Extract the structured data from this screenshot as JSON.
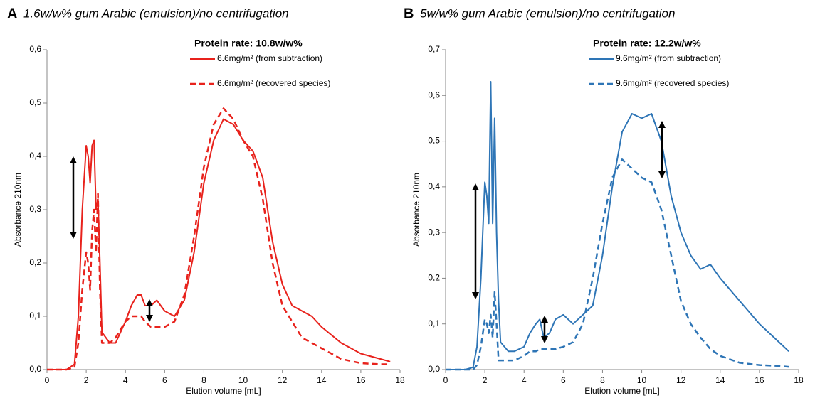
{
  "chart_data": [
    {
      "type": "line",
      "panel": "A",
      "title": "1.6w/w% gum Arabic (emulsion)/no centrifugation",
      "x_label": "Elution volume [mL]",
      "y_label": "Absorbance 210nm",
      "legend_title": "Protein rate: 10.8w/w%",
      "xlim": [
        0,
        18
      ],
      "xticks": [
        0,
        2,
        4,
        6,
        8,
        10,
        12,
        14,
        16,
        18
      ],
      "ylim": [
        0,
        0.6
      ],
      "yticks": [
        {
          "value": 0,
          "label": "0,0"
        },
        {
          "value": 0.1,
          "label": "0,1"
        },
        {
          "value": 0.2,
          "label": "0,2"
        },
        {
          "value": 0.3,
          "label": "0,3"
        },
        {
          "value": 0.4,
          "label": "0,4"
        },
        {
          "value": 0.5,
          "label": "0,5"
        },
        {
          "value": 0.6,
          "label": "0,6"
        }
      ],
      "x": [
        0,
        1,
        1.4,
        1.6,
        1.8,
        2.0,
        2.1,
        2.2,
        2.3,
        2.4,
        2.5,
        2.6,
        2.7,
        2.8,
        3.0,
        3.2,
        3.5,
        4.0,
        4.3,
        4.6,
        4.8,
        5.0,
        5.3,
        5.6,
        6.0,
        6.5,
        7.0,
        7.5,
        8.0,
        8.5,
        9.0,
        9.5,
        10.0,
        10.5,
        11.0,
        11.5,
        12.0,
        12.5,
        13.0,
        13.5,
        14.0,
        15.0,
        16.0,
        17.0,
        17.5
      ],
      "series": [
        {
          "name": "6.6mg/m² (from subtraction)",
          "color": "#e8221c",
          "style": "solid",
          "values": [
            0,
            0,
            0.01,
            0.1,
            0.3,
            0.42,
            0.4,
            0.35,
            0.42,
            0.43,
            0.3,
            0.32,
            0.2,
            0.07,
            0.06,
            0.05,
            0.05,
            0.09,
            0.12,
            0.14,
            0.14,
            0.12,
            0.12,
            0.13,
            0.11,
            0.1,
            0.13,
            0.22,
            0.35,
            0.43,
            0.47,
            0.46,
            0.43,
            0.41,
            0.36,
            0.24,
            0.16,
            0.12,
            0.11,
            0.1,
            0.08,
            0.05,
            0.03,
            0.02,
            0.015
          ]
        },
        {
          "name": "6.6mg/m² (recovered species)",
          "color": "#e8221c",
          "style": "dashed",
          "values": [
            0,
            0,
            0.005,
            0.05,
            0.15,
            0.22,
            0.2,
            0.15,
            0.26,
            0.3,
            0.22,
            0.33,
            0.15,
            0.05,
            0.05,
            0.05,
            0.06,
            0.09,
            0.1,
            0.1,
            0.1,
            0.09,
            0.08,
            0.08,
            0.08,
            0.09,
            0.14,
            0.25,
            0.38,
            0.46,
            0.49,
            0.47,
            0.43,
            0.4,
            0.32,
            0.2,
            0.12,
            0.09,
            0.06,
            0.05,
            0.04,
            0.02,
            0.012,
            0.01,
            0.01
          ]
        }
      ]
    },
    {
      "type": "line",
      "panel": "B",
      "title": "5w/w% gum Arabic (emulsion)/no centrifugation",
      "x_label": "Elution volume [mL]",
      "y_label": "Absorbance 210nm",
      "legend_title": "Protein rate: 12.2w/w%",
      "xlim": [
        0,
        18
      ],
      "xticks": [
        0,
        2,
        4,
        6,
        8,
        10,
        12,
        14,
        16,
        18
      ],
      "ylim": [
        0,
        0.7
      ],
      "yticks": [
        {
          "value": 0,
          "label": "0,0"
        },
        {
          "value": 0.1,
          "label": "0,1"
        },
        {
          "value": 0.2,
          "label": "0,2"
        },
        {
          "value": 0.3,
          "label": "0,3"
        },
        {
          "value": 0.4,
          "label": "0,4"
        },
        {
          "value": 0.5,
          "label": "0,5"
        },
        {
          "value": 0.6,
          "label": "0,6"
        },
        {
          "value": 0.7,
          "label": "0,7"
        }
      ],
      "x": [
        0,
        1,
        1.4,
        1.6,
        1.8,
        2.0,
        2.1,
        2.2,
        2.3,
        2.4,
        2.5,
        2.6,
        2.7,
        2.8,
        3.0,
        3.2,
        3.5,
        4.0,
        4.3,
        4.6,
        4.8,
        5.0,
        5.3,
        5.6,
        6.0,
        6.5,
        7.0,
        7.5,
        8.0,
        8.5,
        9.0,
        9.5,
        10.0,
        10.5,
        11.0,
        11.5,
        12.0,
        12.5,
        13.0,
        13.5,
        14.0,
        15.0,
        16.0,
        17.0,
        17.5
      ],
      "series": [
        {
          "name": "9.6mg/m² (from subtraction)",
          "color": "#2e75b6",
          "style": "solid",
          "values": [
            0,
            0,
            0.005,
            0.05,
            0.2,
            0.41,
            0.38,
            0.32,
            0.63,
            0.32,
            0.55,
            0.3,
            0.15,
            0.06,
            0.05,
            0.04,
            0.04,
            0.05,
            0.08,
            0.1,
            0.11,
            0.07,
            0.08,
            0.11,
            0.12,
            0.1,
            0.12,
            0.14,
            0.25,
            0.4,
            0.52,
            0.56,
            0.55,
            0.56,
            0.5,
            0.38,
            0.3,
            0.25,
            0.22,
            0.23,
            0.2,
            0.15,
            0.1,
            0.06,
            0.04
          ]
        },
        {
          "name": "9.6mg/m² (recovered species)",
          "color": "#2e75b6",
          "style": "dashed",
          "values": [
            0,
            0,
            0,
            0.01,
            0.05,
            0.11,
            0.1,
            0.08,
            0.12,
            0.07,
            0.17,
            0.1,
            0.02,
            0.02,
            0.02,
            0.02,
            0.02,
            0.03,
            0.04,
            0.04,
            0.045,
            0.045,
            0.045,
            0.045,
            0.05,
            0.06,
            0.1,
            0.2,
            0.32,
            0.42,
            0.46,
            0.44,
            0.42,
            0.41,
            0.35,
            0.25,
            0.15,
            0.1,
            0.07,
            0.045,
            0.03,
            0.015,
            0.01,
            0.008,
            0.006
          ]
        }
      ]
    }
  ]
}
